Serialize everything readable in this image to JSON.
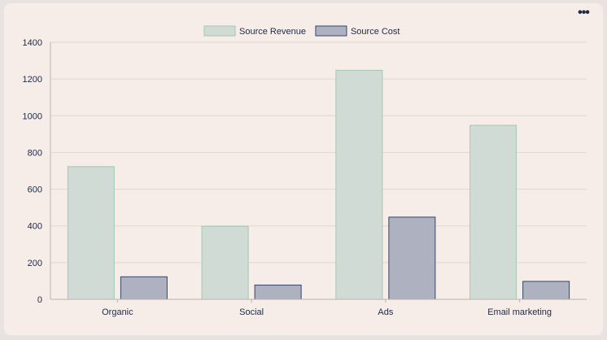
{
  "menu": {
    "icon": "more-horizontal-icon",
    "label": "•••"
  },
  "chart_data": {
    "type": "bar",
    "title": "",
    "xlabel": "",
    "ylabel": "",
    "categories": [
      "Organic",
      "Social",
      "Ads",
      "Email marketing"
    ],
    "series": [
      {
        "name": "Source Revenue",
        "values": [
          725,
          400,
          1250,
          950
        ],
        "fill": "#cfdbd4",
        "stroke": "#a3c8b3"
      },
      {
        "name": "Source Cost",
        "values": [
          125,
          80,
          450,
          100
        ],
        "fill": "#adb1c0",
        "stroke": "#34466b"
      }
    ],
    "ylim": [
      0,
      1400
    ],
    "yticks": [
      0,
      200,
      400,
      600,
      800,
      1000,
      1200,
      1400
    ],
    "grid": true,
    "legend_position": "top-center",
    "colors": {
      "text": "#1f2a44",
      "grid": "#e2d6d2",
      "axis": "#bcb3b0"
    }
  }
}
